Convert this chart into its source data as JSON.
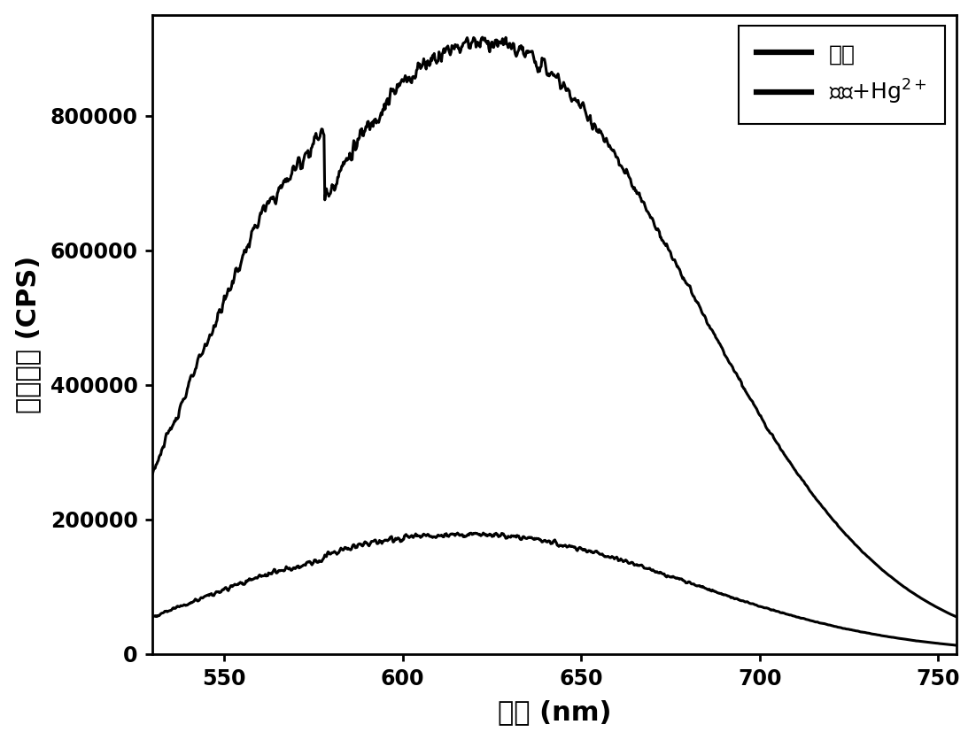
{
  "title": "",
  "xlabel": "波长 (nm)",
  "ylabel": "荺光强度 (CPS)",
  "legend_probe": "探针",
  "legend_probe_hg": "探针+Hg",
  "legend_probe_hg_super": "2+",
  "xlim": [
    530,
    755
  ],
  "ylim": [
    0,
    950000
  ],
  "xticks": [
    550,
    600,
    650,
    700,
    750
  ],
  "yticks": [
    0,
    200000,
    400000,
    600000,
    800000
  ],
  "line_color": "#000000",
  "line_width": 2.2,
  "background_color": "#ffffff"
}
